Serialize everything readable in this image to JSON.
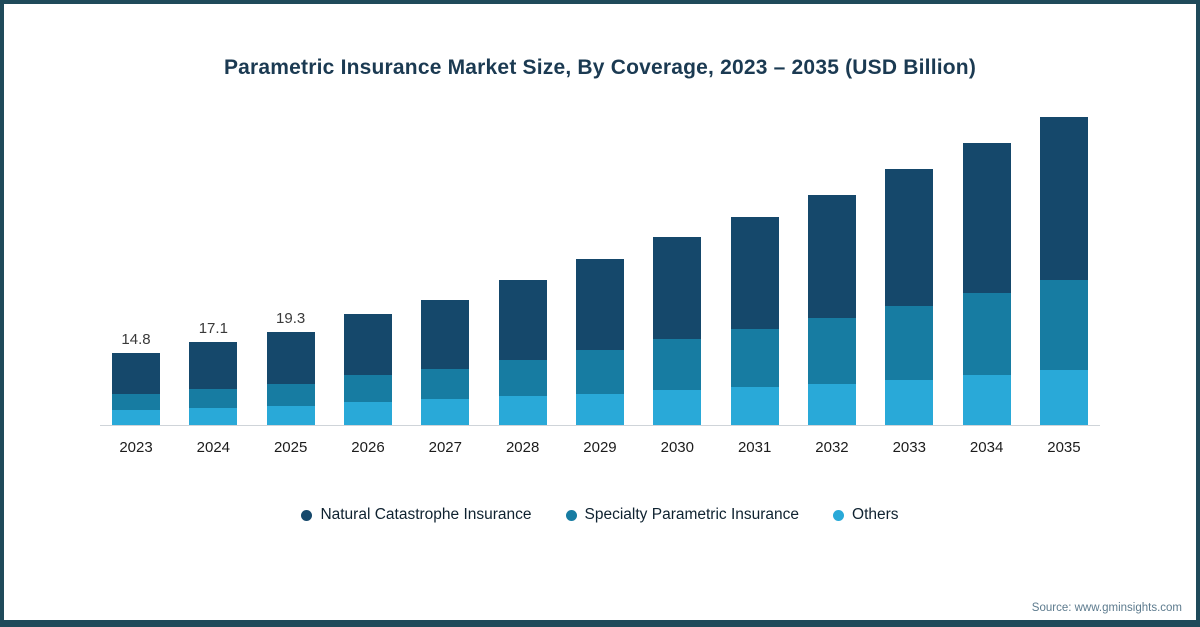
{
  "title": "Parametric Insurance Market Size, By Coverage, 2023 – 2035 (USD Billion)",
  "source": "Source: www.gminsights.com",
  "chart_data": {
    "type": "bar",
    "stacked": true,
    "unit": "USD Billion",
    "title": "Parametric Insurance Market Size, By Coverage, 2023 – 2035 (USD Billion)",
    "xlabel": "",
    "ylabel": "",
    "ylim": [
      0,
      66
    ],
    "grid": false,
    "legend_position": "bottom",
    "categories": [
      "2023",
      "2024",
      "2025",
      "2026",
      "2027",
      "2028",
      "2029",
      "2030",
      "2031",
      "2032",
      "2033",
      "2034",
      "2035"
    ],
    "series": [
      {
        "name": "Natural Catastrophe Insurance",
        "color": "#15486b",
        "values": [
          8.4,
          9.7,
          10.9,
          12.6,
          14.2,
          16.4,
          18.7,
          21.0,
          23.1,
          25.5,
          28.2,
          30.8,
          33.5
        ]
      },
      {
        "name": "Specialty Parametric Insurance",
        "color": "#177ca2",
        "values": [
          3.2,
          3.8,
          4.4,
          5.5,
          6.3,
          7.6,
          9.0,
          10.6,
          12.0,
          13.6,
          15.3,
          17.0,
          18.6
        ]
      },
      {
        "name": "Others",
        "color": "#29a9d8",
        "values": [
          3.2,
          3.6,
          4.0,
          4.8,
          5.3,
          5.9,
          6.5,
          7.2,
          7.8,
          8.4,
          9.3,
          10.3,
          11.4
        ]
      }
    ],
    "totals": [
      14.8,
      17.1,
      19.3,
      22.9,
      25.8,
      29.9,
      34.2,
      38.8,
      42.9,
      47.5,
      52.8,
      58.1,
      63.5
    ],
    "total_labels": [
      "14.8",
      "17.1",
      "19.3",
      "",
      "",
      "",
      "",
      "",
      "",
      "",
      "",
      "",
      ""
    ]
  }
}
